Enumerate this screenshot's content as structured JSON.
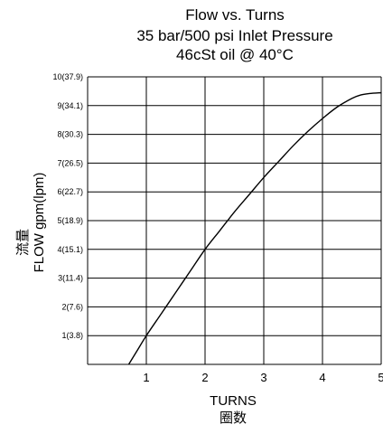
{
  "chart_data": {
    "type": "line",
    "title_lines": [
      "Flow vs. Turns",
      "35 bar/500 psi Inlet Pressure",
      "46cSt oil @ 40°C"
    ],
    "xlabel": "TURNS",
    "xlabel_cn": "圈数",
    "ylabel": "FLOW  gpm(lpm)",
    "ylabel_cn": "流量",
    "xlim": [
      0,
      5
    ],
    "ylim": [
      0,
      10
    ],
    "x_ticks": [
      1,
      2,
      3,
      4,
      5
    ],
    "x_tick_labels": [
      "1",
      "2",
      "3",
      "4",
      "5"
    ],
    "y_ticks": [
      1,
      2,
      3,
      4,
      5,
      6,
      7,
      8,
      9,
      10
    ],
    "y_tick_labels": [
      "1(3.8)",
      "2(7.6)",
      "3(11.4)",
      "4(15.1)",
      "5(18.9)",
      "6(22.7)",
      "7(26.5)",
      "8(30.3)",
      "9(34.1)",
      "10(37.9)"
    ],
    "grid": true,
    "series": [
      {
        "x": [
          0.7,
          0.85,
          1.0,
          1.25,
          1.5,
          1.75,
          2.0,
          2.25,
          2.5,
          2.75,
          3.0,
          3.25,
          3.5,
          3.75,
          4.0,
          4.25,
          4.5,
          4.65,
          4.8,
          5.0
        ],
        "y": [
          0.0,
          0.5,
          1.0,
          1.75,
          2.5,
          3.25,
          4.0,
          4.65,
          5.3,
          5.9,
          6.5,
          7.05,
          7.6,
          8.1,
          8.55,
          8.95,
          9.25,
          9.37,
          9.42,
          9.45
        ]
      }
    ],
    "colors": {
      "line": "#000000",
      "grid": "#000000",
      "background": "#ffffff"
    }
  }
}
